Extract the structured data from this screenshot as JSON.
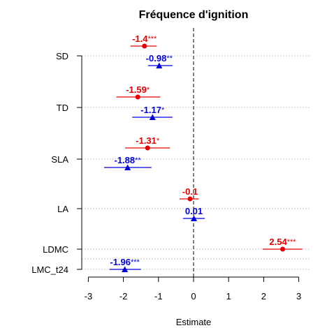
{
  "chart_data": {
    "type": "scatter",
    "title": "Fréquence d'ignition",
    "xlabel": "Estimate",
    "ylabel": "",
    "xlim": [
      -3.1,
      3.1
    ],
    "xticks": [
      "-3",
      "-2",
      "-1",
      "0",
      "1",
      "2",
      "3"
    ],
    "xtick_values": [
      -3,
      -2,
      -1,
      0,
      1,
      2,
      3
    ],
    "reference_line": 0,
    "colors": {
      "red": "#e60000",
      "blue": "#0000dd"
    },
    "rows": [
      {
        "label": "SD"
      },
      {
        "label": "TD"
      },
      {
        "label": "SLA"
      },
      {
        "label": "LA"
      },
      {
        "label": "LDMC"
      },
      {
        "label": "LMC_t24"
      }
    ],
    "points": [
      {
        "row": "SD",
        "color": "red",
        "marker": "circle",
        "estimate": -1.4,
        "ci": [
          -1.8,
          -1.05
        ],
        "value_label": "-1.4",
        "stars": "***"
      },
      {
        "row": "SD",
        "color": "blue",
        "marker": "triangle",
        "estimate": -0.98,
        "ci": [
          -1.3,
          -0.6
        ],
        "value_label": "-0.98",
        "stars": "**"
      },
      {
        "row": "TD",
        "color": "red",
        "marker": "circle",
        "estimate": -1.59,
        "ci": [
          -2.2,
          -0.95
        ],
        "value_label": "-1.59",
        "stars": "*"
      },
      {
        "row": "TD",
        "color": "blue",
        "marker": "triangle",
        "estimate": -1.17,
        "ci": [
          -1.75,
          -0.6
        ],
        "value_label": "-1.17",
        "stars": "*"
      },
      {
        "row": "SLA",
        "color": "red",
        "marker": "circle",
        "estimate": -1.31,
        "ci": [
          -1.95,
          -0.68
        ],
        "value_label": "-1.31",
        "stars": "*"
      },
      {
        "row": "SLA",
        "color": "blue",
        "marker": "triangle",
        "estimate": -1.88,
        "ci": [
          -2.55,
          -1.2
        ],
        "value_label": "-1.88",
        "stars": "**"
      },
      {
        "row": "LA",
        "color": "red",
        "marker": "circle",
        "estimate": -0.1,
        "ci": [
          -0.4,
          0.15
        ],
        "value_label": "-0.1",
        "stars": ""
      },
      {
        "row": "LA",
        "color": "blue",
        "marker": "triangle",
        "estimate": 0.01,
        "ci": [
          -0.3,
          0.32
        ],
        "value_label": "0.01",
        "stars": ""
      },
      {
        "row": "LDMC",
        "color": "red",
        "marker": "circle",
        "estimate": 2.54,
        "ci": [
          1.97,
          3.1
        ],
        "value_label": "2.54",
        "stars": "***"
      },
      {
        "row": "LMC_t24",
        "color": "blue",
        "marker": "triangle",
        "estimate": -1.96,
        "ci": [
          -2.4,
          -1.5
        ],
        "value_label": "-1.96",
        "stars": "***"
      }
    ]
  }
}
